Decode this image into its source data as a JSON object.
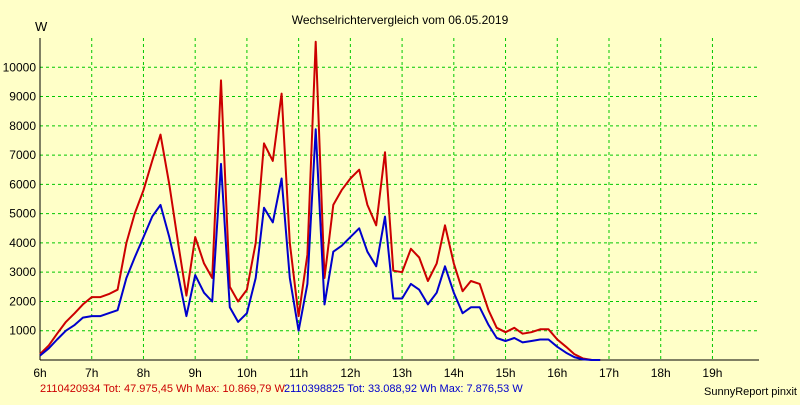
{
  "chart_data": {
    "type": "line",
    "title": "Wechselrichtervergleich vom 06.05.2019",
    "ylabel": "W",
    "xlabel": "",
    "ylim": [
      0,
      11000
    ],
    "yticks": [
      1000,
      2000,
      3000,
      4000,
      5000,
      6000,
      7000,
      8000,
      9000,
      10000
    ],
    "xlim": [
      6,
      19.9
    ],
    "xticks": [
      6,
      7,
      8,
      9,
      10,
      11,
      12,
      13,
      14,
      15,
      16,
      17,
      18,
      19
    ],
    "xtick_labels": [
      "6h",
      "7h",
      "8h",
      "9h",
      "10h",
      "11h",
      "12h",
      "13h",
      "14h",
      "15h",
      "16h",
      "17h",
      "18h",
      "19h"
    ],
    "grid": true,
    "colors": {
      "background": "#ffffc8",
      "grid": "#00c800",
      "axis": "#000000"
    },
    "series": [
      {
        "label": "2110420934 Tot: 47.975,45 Wh Max: 10.869,79 W",
        "color": "#cc0000",
        "points": [
          [
            6.0,
            200
          ],
          [
            6.17,
            500
          ],
          [
            6.33,
            900
          ],
          [
            6.5,
            1300
          ],
          [
            6.67,
            1600
          ],
          [
            6.83,
            1900
          ],
          [
            7.0,
            2150
          ],
          [
            7.17,
            2150
          ],
          [
            7.33,
            2250
          ],
          [
            7.5,
            2400
          ],
          [
            7.67,
            4000
          ],
          [
            7.83,
            5000
          ],
          [
            8.0,
            5800
          ],
          [
            8.17,
            6800
          ],
          [
            8.33,
            7700
          ],
          [
            8.5,
            6000
          ],
          [
            8.67,
            4000
          ],
          [
            8.83,
            2200
          ],
          [
            9.0,
            4200
          ],
          [
            9.17,
            3300
          ],
          [
            9.33,
            2800
          ],
          [
            9.5,
            9550
          ],
          [
            9.67,
            2500
          ],
          [
            9.83,
            2000
          ],
          [
            10.0,
            2400
          ],
          [
            10.17,
            4000
          ],
          [
            10.33,
            7400
          ],
          [
            10.5,
            6800
          ],
          [
            10.67,
            9100
          ],
          [
            10.83,
            4000
          ],
          [
            11.0,
            1500
          ],
          [
            11.17,
            3600
          ],
          [
            11.33,
            10870
          ],
          [
            11.5,
            2800
          ],
          [
            11.67,
            5300
          ],
          [
            11.83,
            5800
          ],
          [
            12.0,
            6200
          ],
          [
            12.17,
            6500
          ],
          [
            12.33,
            5300
          ],
          [
            12.5,
            4600
          ],
          [
            12.67,
            7100
          ],
          [
            12.83,
            3050
          ],
          [
            13.0,
            3000
          ],
          [
            13.17,
            3800
          ],
          [
            13.33,
            3500
          ],
          [
            13.5,
            2700
          ],
          [
            13.67,
            3300
          ],
          [
            13.83,
            4600
          ],
          [
            14.0,
            3300
          ],
          [
            14.17,
            2350
          ],
          [
            14.33,
            2700
          ],
          [
            14.5,
            2600
          ],
          [
            14.67,
            1700
          ],
          [
            14.83,
            1100
          ],
          [
            15.0,
            950
          ],
          [
            15.17,
            1100
          ],
          [
            15.33,
            900
          ],
          [
            15.5,
            950
          ],
          [
            15.67,
            1050
          ],
          [
            15.83,
            1050
          ],
          [
            16.0,
            700
          ],
          [
            16.17,
            450
          ],
          [
            16.33,
            200
          ],
          [
            16.5,
            50
          ],
          [
            16.67,
            0
          ],
          [
            16.83,
            0
          ]
        ]
      },
      {
        "label": "2110398825 Tot: 33.088,92 Wh Max: 7.876,53 W",
        "color": "#0000cc",
        "points": [
          [
            6.0,
            150
          ],
          [
            6.17,
            400
          ],
          [
            6.33,
            700
          ],
          [
            6.5,
            1000
          ],
          [
            6.67,
            1200
          ],
          [
            6.83,
            1450
          ],
          [
            7.0,
            1500
          ],
          [
            7.17,
            1500
          ],
          [
            7.33,
            1600
          ],
          [
            7.5,
            1700
          ],
          [
            7.67,
            2800
          ],
          [
            7.83,
            3500
          ],
          [
            8.0,
            4200
          ],
          [
            8.17,
            4900
          ],
          [
            8.33,
            5300
          ],
          [
            8.5,
            4200
          ],
          [
            8.67,
            2900
          ],
          [
            8.83,
            1500
          ],
          [
            9.0,
            2900
          ],
          [
            9.17,
            2300
          ],
          [
            9.33,
            2000
          ],
          [
            9.5,
            6700
          ],
          [
            9.67,
            1800
          ],
          [
            9.83,
            1300
          ],
          [
            10.0,
            1600
          ],
          [
            10.17,
            2800
          ],
          [
            10.33,
            5200
          ],
          [
            10.5,
            4700
          ],
          [
            10.67,
            6200
          ],
          [
            10.83,
            2800
          ],
          [
            11.0,
            1000
          ],
          [
            11.17,
            2600
          ],
          [
            11.33,
            7880
          ],
          [
            11.5,
            1900
          ],
          [
            11.67,
            3700
          ],
          [
            11.83,
            3900
          ],
          [
            12.0,
            4200
          ],
          [
            12.17,
            4500
          ],
          [
            12.33,
            3700
          ],
          [
            12.5,
            3200
          ],
          [
            12.67,
            4900
          ],
          [
            12.83,
            2100
          ],
          [
            13.0,
            2100
          ],
          [
            13.17,
            2600
          ],
          [
            13.33,
            2400
          ],
          [
            13.5,
            1900
          ],
          [
            13.67,
            2300
          ],
          [
            13.83,
            3200
          ],
          [
            14.0,
            2300
          ],
          [
            14.17,
            1600
          ],
          [
            14.33,
            1800
          ],
          [
            14.5,
            1800
          ],
          [
            14.67,
            1200
          ],
          [
            14.83,
            750
          ],
          [
            15.0,
            650
          ],
          [
            15.17,
            750
          ],
          [
            15.33,
            600
          ],
          [
            15.5,
            650
          ],
          [
            15.67,
            700
          ],
          [
            15.83,
            700
          ],
          [
            16.0,
            450
          ],
          [
            16.17,
            250
          ],
          [
            16.33,
            100
          ],
          [
            16.5,
            20
          ],
          [
            16.67,
            0
          ],
          [
            16.83,
            0
          ]
        ]
      }
    ]
  },
  "credit": "SunnyReport pinxit"
}
